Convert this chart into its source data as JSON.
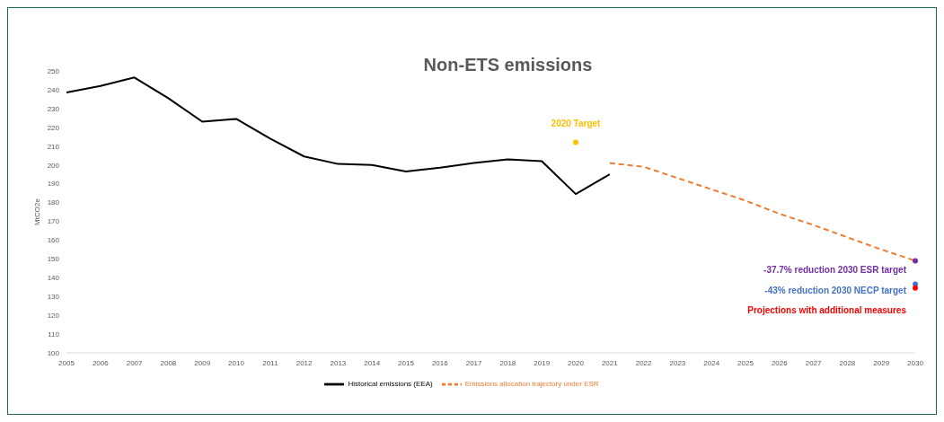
{
  "chart_data": {
    "type": "line",
    "title": "Non-ETS emissions",
    "ylabel": "MtCO2e",
    "categories": [
      "2005",
      "2006",
      "2007",
      "2008",
      "2009",
      "2010",
      "2011",
      "2012",
      "2013",
      "2014",
      "2015",
      "2016",
      "2017",
      "2018",
      "2019",
      "2020",
      "2021",
      "2022",
      "2023",
      "2024",
      "2025",
      "2026",
      "2027",
      "2028",
      "2029",
      "2030"
    ],
    "ylim": [
      100,
      250
    ],
    "yticks": [
      100,
      110,
      120,
      130,
      140,
      150,
      160,
      170,
      180,
      190,
      200,
      210,
      220,
      230,
      240,
      250
    ],
    "legend": "bottom",
    "series": [
      {
        "name": "Historical emissions (EEA)",
        "color": "#000000",
        "line_style": "solid",
        "values": [
          238.5,
          242,
          246.5,
          235.5,
          223,
          224.5,
          214,
          204.5,
          200.5,
          200,
          196.5,
          198.5,
          201,
          203,
          202,
          184.5,
          195,
          null,
          null,
          null,
          null,
          null,
          null,
          null,
          null,
          null
        ]
      },
      {
        "name": "Emissions allocation trajectory under ESR",
        "color": "#ed7d31",
        "line_style": "dashed",
        "values": [
          null,
          null,
          null,
          null,
          null,
          null,
          null,
          null,
          null,
          null,
          null,
          null,
          null,
          null,
          null,
          null,
          201,
          199,
          193,
          187,
          181,
          174,
          168,
          161.5,
          155,
          149
        ]
      },
      {
        "name": "2020 Target",
        "type": "scatter",
        "color": "#ffc000",
        "values": [
          null,
          null,
          null,
          null,
          null,
          null,
          null,
          null,
          null,
          null,
          null,
          null,
          null,
          null,
          null,
          212,
          null,
          null,
          null,
          null,
          null,
          null,
          null,
          null,
          null,
          null
        ]
      },
      {
        "name": "-37.7% reduction 2030 ESR target",
        "type": "scatter",
        "color": "#7030a0",
        "values": [
          null,
          null,
          null,
          null,
          null,
          null,
          null,
          null,
          null,
          null,
          null,
          null,
          null,
          null,
          null,
          null,
          null,
          null,
          null,
          null,
          null,
          null,
          null,
          null,
          null,
          149
        ]
      },
      {
        "name": "-43% reduction 2030 NECP target",
        "type": "scatter",
        "color": "#4472c4",
        "values": [
          null,
          null,
          null,
          null,
          null,
          null,
          null,
          null,
          null,
          null,
          null,
          null,
          null,
          null,
          null,
          null,
          null,
          null,
          null,
          null,
          null,
          null,
          null,
          null,
          null,
          136.5
        ]
      },
      {
        "name": "Projections with additional measures",
        "type": "scatter",
        "color": "#ff0000",
        "values": [
          null,
          null,
          null,
          null,
          null,
          null,
          null,
          null,
          null,
          null,
          null,
          null,
          null,
          null,
          null,
          null,
          null,
          null,
          null,
          null,
          null,
          null,
          null,
          null,
          null,
          134.5
        ]
      }
    ]
  }
}
